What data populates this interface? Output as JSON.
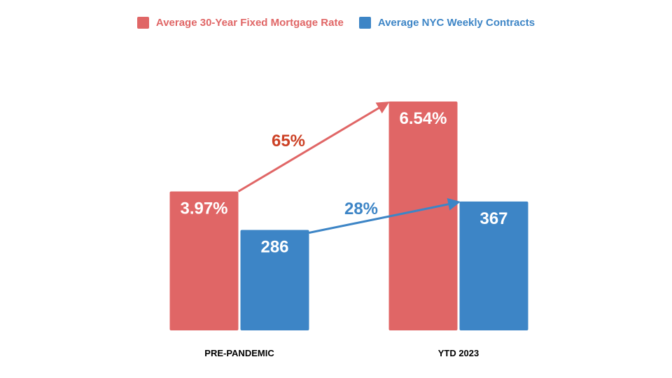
{
  "chart_data": {
    "type": "bar",
    "categories": [
      "PRE-PANDEMIC",
      "YTD 2023"
    ],
    "series": [
      {
        "name": "Average 30-Year Fixed Mortgage Rate",
        "values": [
          3.97,
          6.54
        ],
        "labels": [
          "3.97%",
          "6.54%"
        ],
        "color": "#e06666",
        "change_label": "65%",
        "change_label_color": "#cc4125"
      },
      {
        "name": "Average NYC Weekly Contracts",
        "values": [
          286,
          367
        ],
        "labels": [
          "286",
          "367"
        ],
        "color": "#3d85c6",
        "change_label": "28%",
        "change_label_color": "#3d85c6"
      }
    ],
    "legend_position": "top-center",
    "grid": false
  }
}
